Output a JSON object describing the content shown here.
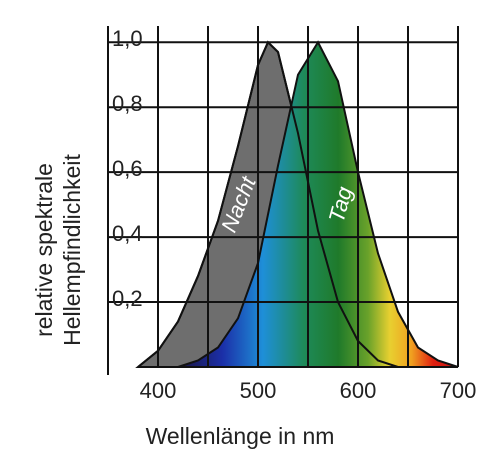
{
  "chart_data": {
    "type": "area",
    "x_label": "Wellenlänge in nm",
    "y_label": [
      "relative spektrale",
      "Hellempfindlichkeit"
    ],
    "xlim": [
      350,
      700
    ],
    "ylim": [
      0,
      1.05
    ],
    "xticks": [
      400,
      500,
      600,
      700
    ],
    "yticks": [
      {
        "value": 0.2,
        "label": "0,2"
      },
      {
        "value": 0.4,
        "label": "0,4"
      },
      {
        "value": 0.6,
        "label": "0,6"
      },
      {
        "value": 0.8,
        "label": "0,8"
      },
      {
        "value": 1.0,
        "label": "1,0"
      }
    ],
    "grid": true,
    "series": [
      {
        "name": "Nacht",
        "color": "#6e6e6e",
        "x": [
          380,
          400,
          420,
          440,
          460,
          480,
          500,
          510,
          520,
          540,
          560,
          580,
          600,
          620,
          640
        ],
        "values": [
          0,
          0.05,
          0.14,
          0.28,
          0.45,
          0.68,
          0.93,
          1.0,
          0.97,
          0.72,
          0.42,
          0.2,
          0.08,
          0.02,
          0
        ]
      },
      {
        "name": "Tag",
        "color": "spectrum",
        "x": [
          420,
          440,
          460,
          480,
          500,
          520,
          540,
          560,
          580,
          600,
          620,
          640,
          660,
          680,
          700
        ],
        "values": [
          0,
          0.02,
          0.06,
          0.15,
          0.32,
          0.62,
          0.9,
          1.0,
          0.88,
          0.6,
          0.35,
          0.17,
          0.06,
          0.02,
          0
        ]
      }
    ]
  }
}
